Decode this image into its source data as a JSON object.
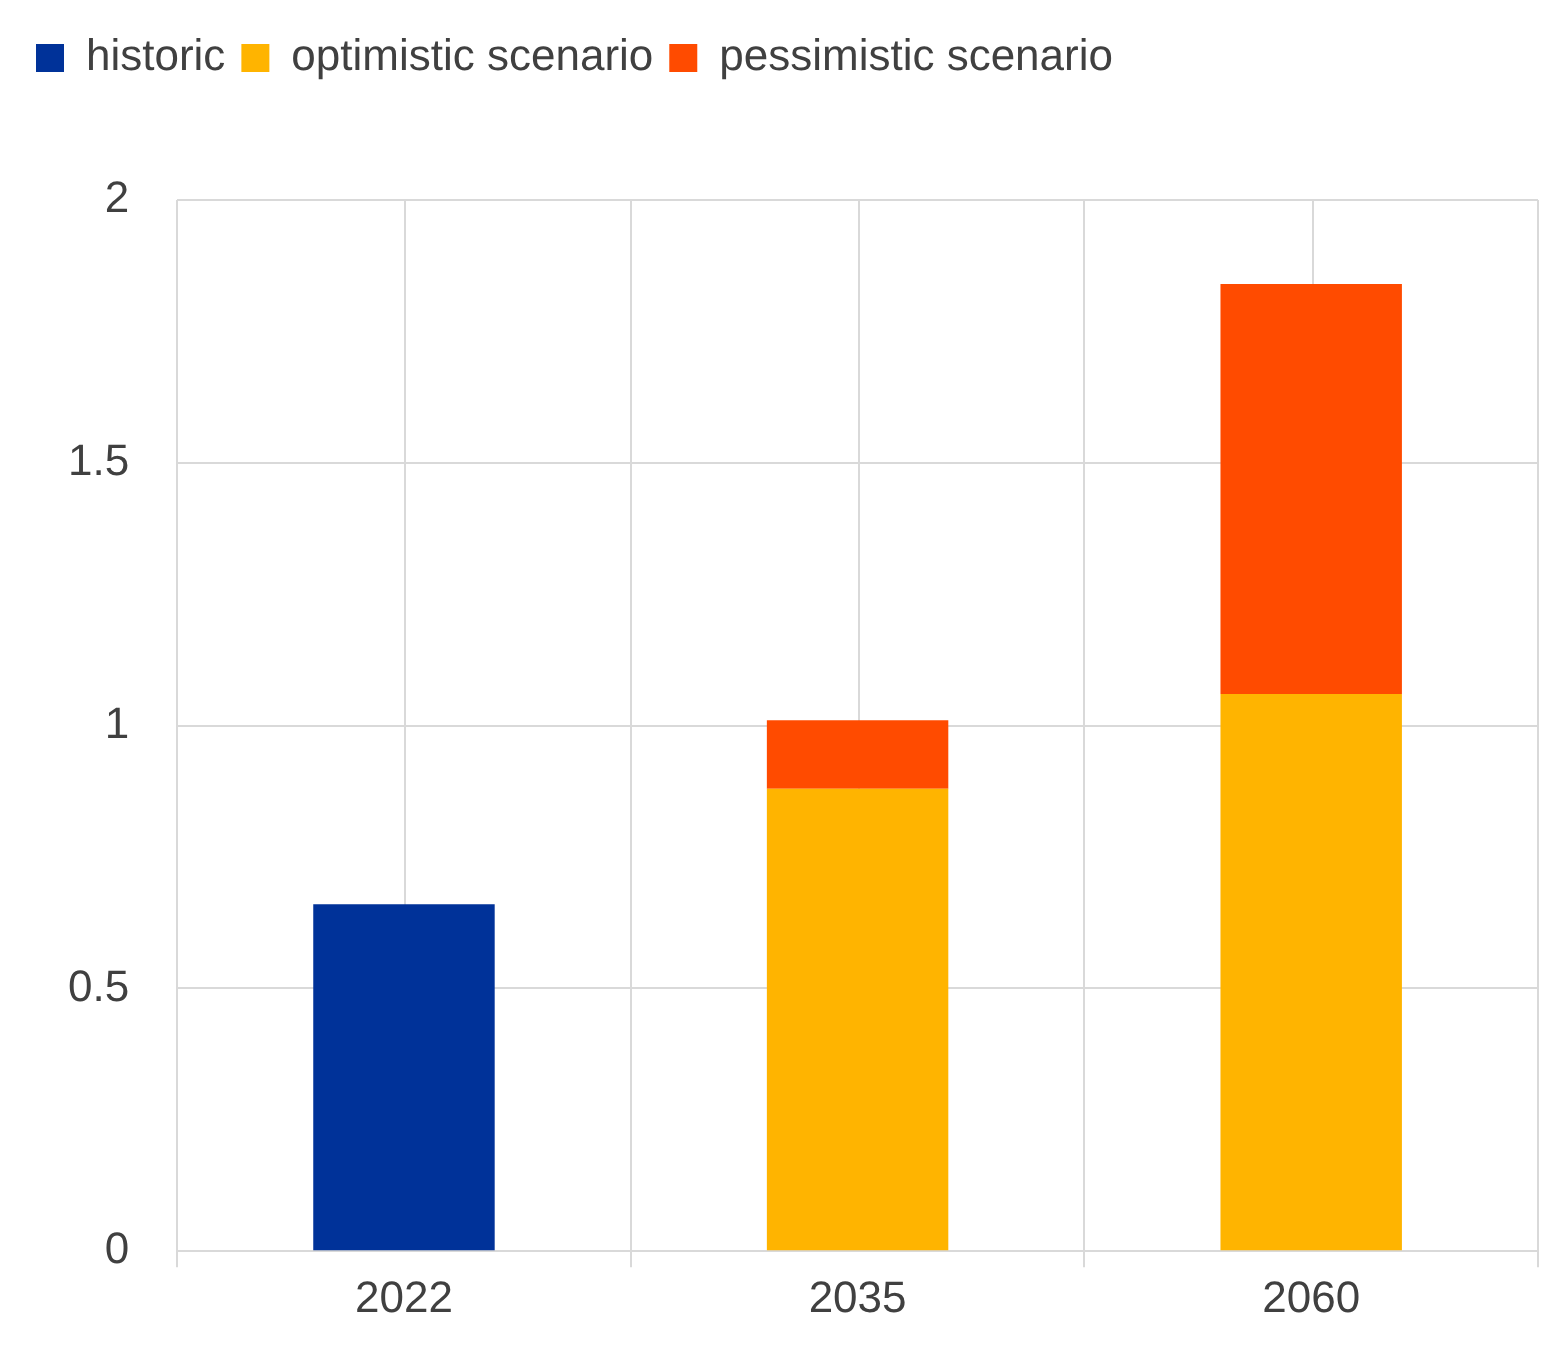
{
  "chart_data": {
    "type": "bar",
    "categories": [
      "2022",
      "2035",
      "2060"
    ],
    "stacked": true,
    "series": [
      {
        "name": "historic",
        "color": "#003299",
        "values": [
          0.66,
          null,
          null
        ]
      },
      {
        "name": "optimistic scenario",
        "color": "#ffb400",
        "values": [
          null,
          0.88,
          1.06
        ]
      },
      {
        "name": "pessimistic scenario",
        "color": "#ff4b00",
        "values": [
          null,
          0.13,
          0.78
        ]
      }
    ],
    "ylim": [
      0,
      2
    ],
    "yticks": [
      0,
      0.5,
      1,
      1.5,
      2
    ],
    "grid": true,
    "legend": "top left"
  }
}
